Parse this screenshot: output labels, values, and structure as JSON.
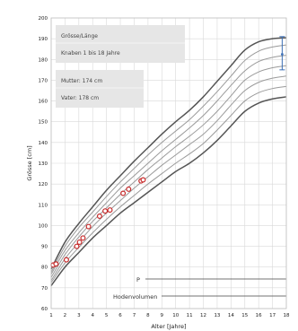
{
  "chart_data": {
    "type": "line",
    "xlabel": "Alter [Jahre]",
    "ylabel": "Grösse [cm]",
    "xlim": [
      1,
      18
    ],
    "ylim": [
      60,
      200
    ],
    "x_ticks": [
      "1",
      "2",
      "3",
      "4",
      "5",
      "6",
      "7",
      "8",
      "9",
      "10",
      "11",
      "12",
      "13",
      "14",
      "15",
      "16",
      "17",
      "18"
    ],
    "y_ticks": [
      "60",
      "70",
      "80",
      "90",
      "100",
      "110",
      "120",
      "130",
      "140",
      "150",
      "160",
      "170",
      "180",
      "190",
      "200"
    ],
    "grid": true,
    "info_box": {
      "title": "Grösse/Länge",
      "subtitle": "Knaben 1 bis 18 Jahre"
    },
    "parents_box": {
      "mother": "Mutter: 174 cm",
      "father": "Vater: 178 cm"
    },
    "markers": {
      "p_label": "P",
      "testis_label": "Hodenvolumen"
    },
    "percentile_curves": [
      {
        "x": [
          1,
          2,
          3,
          4,
          5,
          6,
          7,
          8,
          9,
          10,
          11,
          12,
          13,
          14,
          15,
          16,
          17,
          18
        ],
        "values": [
          71,
          80,
          87,
          94,
          100,
          106,
          111,
          116,
          121,
          126,
          130,
          135,
          141,
          148,
          155,
          159,
          161,
          162
        ]
      },
      {
        "x": [
          1,
          2,
          3,
          4,
          5,
          6,
          7,
          8,
          9,
          10,
          11,
          12,
          13,
          14,
          15,
          16,
          17,
          18
        ],
        "values": [
          72.5,
          82,
          89.5,
          96.5,
          103,
          109,
          114.5,
          120,
          125,
          130,
          134.5,
          139.5,
          146,
          153,
          160,
          164,
          166,
          167
        ]
      },
      {
        "x": [
          1,
          2,
          3,
          4,
          5,
          6,
          7,
          8,
          9,
          10,
          11,
          12,
          13,
          14,
          15,
          16,
          17,
          18
        ],
        "values": [
          73.5,
          84,
          92,
          99.5,
          106,
          112,
          118,
          123.5,
          129,
          134,
          139,
          144,
          150.5,
          158,
          165,
          169,
          171,
          172
        ]
      },
      {
        "x": [
          1,
          2,
          3,
          4,
          5,
          6,
          7,
          8,
          9,
          10,
          11,
          12,
          13,
          14,
          15,
          16,
          17,
          18
        ],
        "values": [
          75,
          86,
          94.5,
          102,
          108.5,
          115,
          121,
          127,
          132.5,
          138,
          143,
          148.5,
          155,
          162.5,
          170,
          174,
          176,
          177
        ]
      },
      {
        "x": [
          1,
          2,
          3,
          4,
          5,
          6,
          7,
          8,
          9,
          10,
          11,
          12,
          13,
          14,
          15,
          16,
          17,
          18
        ],
        "values": [
          76.5,
          88,
          96.5,
          104,
          111,
          118,
          124,
          130,
          136,
          141.5,
          147,
          153,
          160,
          167.5,
          174.5,
          179,
          181,
          182
        ]
      },
      {
        "x": [
          1,
          2,
          3,
          4,
          5,
          6,
          7,
          8,
          9,
          10,
          11,
          12,
          13,
          14,
          15,
          16,
          17,
          18
        ],
        "values": [
          77.5,
          90,
          99,
          106.5,
          114,
          121,
          127.5,
          134,
          140,
          145.5,
          151,
          157.5,
          164.5,
          172,
          179.5,
          184,
          186,
          187
        ]
      },
      {
        "x": [
          1,
          2,
          3,
          4,
          5,
          6,
          7,
          8,
          9,
          10,
          11,
          12,
          13,
          14,
          15,
          16,
          17,
          18
        ],
        "values": [
          79,
          92,
          101,
          109,
          117,
          124,
          131,
          137.5,
          144,
          150,
          155.5,
          162,
          169.5,
          177,
          184.5,
          188.5,
          190,
          190.5
        ]
      }
    ],
    "measurements": {
      "x": [
        1.15,
        1.35,
        2.1,
        2.85,
        3.05,
        3.3,
        3.7,
        4.5,
        4.9,
        5.25,
        6.2,
        6.6,
        7.5,
        7.65
      ],
      "values": [
        81,
        81.5,
        83.5,
        90,
        92,
        94,
        99.5,
        104.5,
        107,
        107.5,
        115.5,
        117.5,
        121.5,
        122
      ]
    },
    "target_range": {
      "x": 17.7,
      "low": 175,
      "high": 191,
      "mid": 182.5
    },
    "colors": {
      "curve": "#555555",
      "curve_light": "#9a9a9a",
      "grid": "#d9d9d9",
      "point": "#c62828",
      "target": "#3b6fb6",
      "box_fill": "#e6e6e6"
    }
  }
}
